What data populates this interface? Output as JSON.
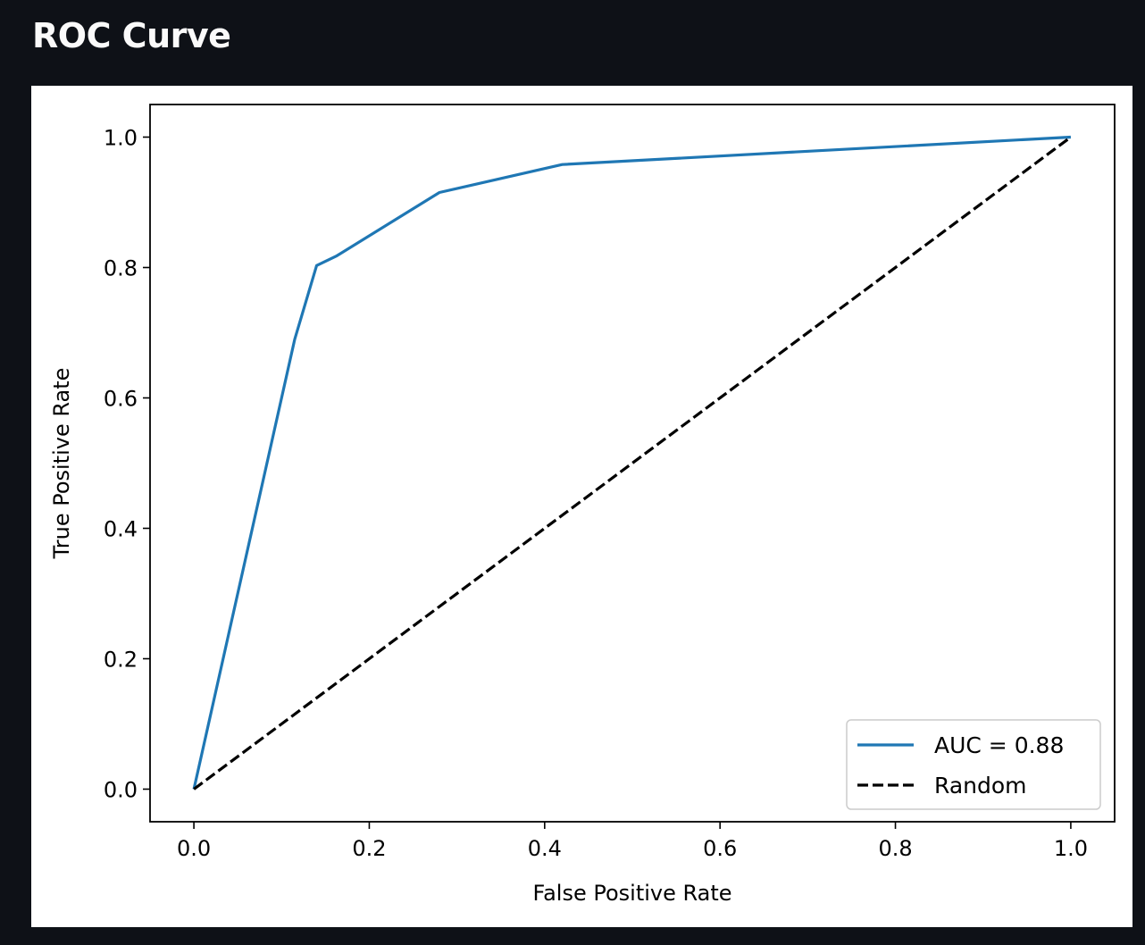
{
  "page": {
    "title": "ROC Curve"
  },
  "chart_data": {
    "type": "line",
    "title": "",
    "xlabel": "False Positive Rate",
    "ylabel": "True Positive Rate",
    "xlim": [
      -0.05,
      1.05
    ],
    "ylim": [
      -0.05,
      1.05
    ],
    "xticks": [
      0.0,
      0.2,
      0.4,
      0.6,
      0.8,
      1.0
    ],
    "xtick_labels": [
      "0.0",
      "0.2",
      "0.4",
      "0.6",
      "0.8",
      "1.0"
    ],
    "yticks": [
      0.0,
      0.2,
      0.4,
      0.6,
      0.8,
      1.0
    ],
    "ytick_labels": [
      "0.0",
      "0.2",
      "0.4",
      "0.6",
      "0.8",
      "1.0"
    ],
    "grid": false,
    "legend_position": "lower-right",
    "series": [
      {
        "name": "AUC = 0.88",
        "color": "#1f77b4",
        "style": "solid",
        "x": [
          0.0,
          0.115,
          0.14,
          0.163,
          0.28,
          0.42,
          1.0
        ],
        "y": [
          0.0,
          0.69,
          0.803,
          0.818,
          0.915,
          0.958,
          1.0
        ]
      },
      {
        "name": "Random",
        "color": "#000000",
        "style": "dashed",
        "x": [
          0.0,
          1.0
        ],
        "y": [
          0.0,
          1.0
        ]
      }
    ]
  }
}
